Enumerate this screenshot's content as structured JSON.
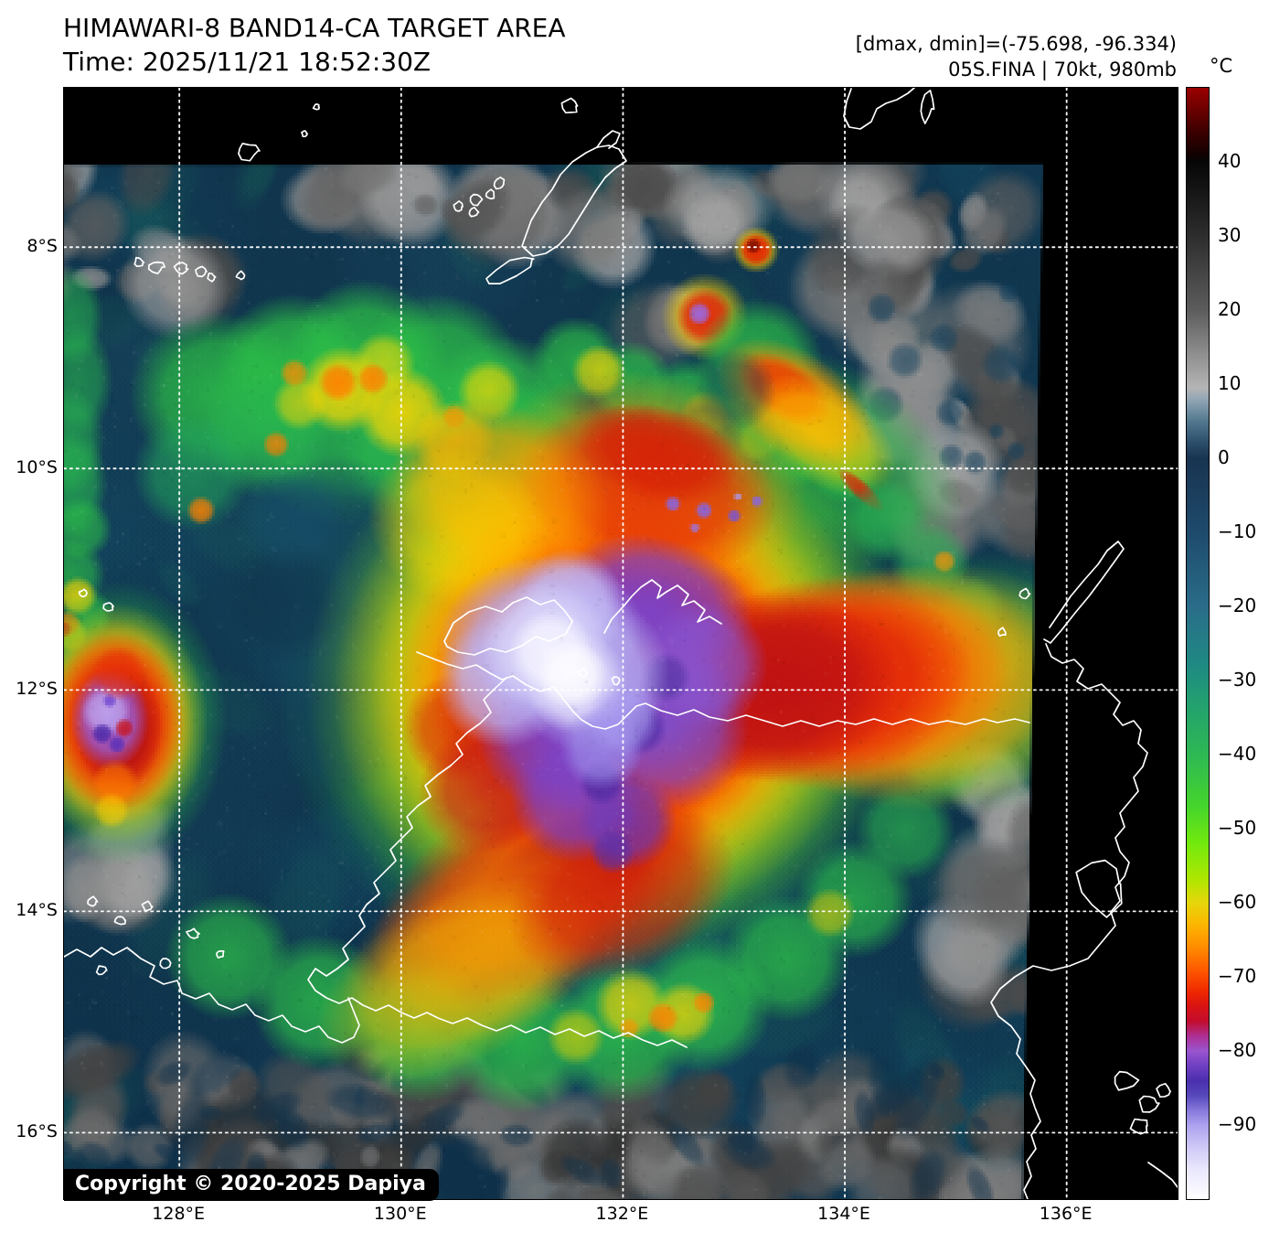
{
  "header": {
    "title": "HIMAWARI-8 BAND14-CA TARGET AREA",
    "time": "Time: 2025/11/21 18:52:30Z",
    "dmax_dmin": "[dmax, dmin]=(-75.698, -96.334)",
    "storm_info": "05S.FINA | 70kt, 980mb"
  },
  "copyright": "Copyright © 2020-2025 Dapiya",
  "colorbar": {
    "unit": "°C",
    "vmax": 50,
    "vmin": -100,
    "ticks": [
      {
        "value": 40,
        "label": "40"
      },
      {
        "value": 30,
        "label": "30"
      },
      {
        "value": 20,
        "label": "20"
      },
      {
        "value": 10,
        "label": "10"
      },
      {
        "value": 0,
        "label": "0"
      },
      {
        "value": -10,
        "label": "−10"
      },
      {
        "value": -20,
        "label": "−20"
      },
      {
        "value": -30,
        "label": "−30"
      },
      {
        "value": -40,
        "label": "−40"
      },
      {
        "value": -50,
        "label": "−50"
      },
      {
        "value": -60,
        "label": "−60"
      },
      {
        "value": -70,
        "label": "−70"
      },
      {
        "value": -80,
        "label": "−80"
      },
      {
        "value": -90,
        "label": "−90"
      }
    ],
    "stops": [
      {
        "t": 50,
        "c": "#9b0000"
      },
      {
        "t": 45,
        "c": "#4a0000"
      },
      {
        "t": 41,
        "c": "#120101"
      },
      {
        "t": 40,
        "c": "#060606"
      },
      {
        "t": 30,
        "c": "#2d2d2d"
      },
      {
        "t": 20,
        "c": "#5c5c5c"
      },
      {
        "t": 11,
        "c": "#a8a8a8"
      },
      {
        "t": 9.5,
        "c": "#b5b5b5"
      },
      {
        "t": 8,
        "c": "#93a7b6"
      },
      {
        "t": 5,
        "c": "#52788f"
      },
      {
        "t": 2,
        "c": "#2b4c69"
      },
      {
        "t": 0,
        "c": "#183450"
      },
      {
        "t": -10,
        "c": "#1e4a6c"
      },
      {
        "t": -20,
        "c": "#2a6c89"
      },
      {
        "t": -28,
        "c": "#1f8a83"
      },
      {
        "t": -33,
        "c": "#22a070"
      },
      {
        "t": -40,
        "c": "#2eb854"
      },
      {
        "t": -47,
        "c": "#45d52c"
      },
      {
        "t": -52,
        "c": "#73e90e"
      },
      {
        "t": -57,
        "c": "#b0e600"
      },
      {
        "t": -60,
        "c": "#e6d60b"
      },
      {
        "t": -63,
        "c": "#fdb501"
      },
      {
        "t": -66,
        "c": "#ff8c00"
      },
      {
        "t": -69,
        "c": "#fe5a00"
      },
      {
        "t": -72,
        "c": "#ef2800"
      },
      {
        "t": -74,
        "c": "#d81313"
      },
      {
        "t": -76,
        "c": "#c30d2e"
      },
      {
        "t": -78,
        "c": "#ad2f92"
      },
      {
        "t": -80,
        "c": "#9a55cf"
      },
      {
        "t": -82,
        "c": "#6f3fc2"
      },
      {
        "t": -84,
        "c": "#4b2fae"
      },
      {
        "t": -86,
        "c": "#5647bb"
      },
      {
        "t": -88,
        "c": "#8678da"
      },
      {
        "t": -90,
        "c": "#aba1ef"
      },
      {
        "t": -93,
        "c": "#cfc9f7"
      },
      {
        "t": -96,
        "c": "#e9e7fc"
      },
      {
        "t": -100,
        "c": "#ffffff"
      }
    ]
  },
  "x_axis": {
    "ticks": [
      {
        "lon": 128,
        "label": "128°E"
      },
      {
        "lon": 130,
        "label": "130°E"
      },
      {
        "lon": 132,
        "label": "132°E"
      },
      {
        "lon": 134,
        "label": "134°E"
      },
      {
        "lon": 136,
        "label": "136°E"
      }
    ]
  },
  "y_axis": {
    "ticks": [
      {
        "lat": -8,
        "label": "8°S"
      },
      {
        "lat": -10,
        "label": "10°S"
      },
      {
        "lat": -12,
        "label": "12°S"
      },
      {
        "lat": -14,
        "label": "14°S"
      },
      {
        "lat": -16,
        "label": "16°S"
      }
    ]
  },
  "extent": {
    "lon_min": 126.96,
    "lon_max": 137.0,
    "lat_min": -16.6,
    "lat_max": -6.56
  },
  "scene": {
    "satellite": "HIMAWARI-8",
    "band": "BAND14-CA",
    "product": "TARGET AREA",
    "storm_id": "05S.FINA",
    "intensity": "70kt",
    "pressure": "980mb",
    "features": [
      "tropical cyclone with cold (purple/white) central dense overcast near 131.7E 11.8S over the Tiwi Islands / Darwin coast",
      "secondary cold convective cluster near 127.5E 12.2S",
      "convective rainbands (green/yellow/orange) arcing north and south of the cyclone",
      "warm grey low cloud fields over the Timor Sea edges and south of 14S",
      "black no-data margins at top and right of the satellite target-area swath"
    ]
  }
}
